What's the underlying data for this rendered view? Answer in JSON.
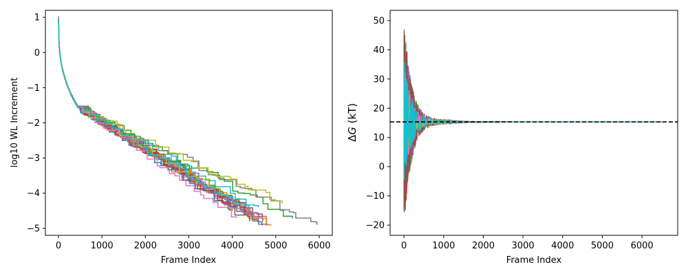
{
  "chart_data": [
    {
      "type": "line",
      "xlabel": "Frame Index",
      "ylabel": "log10 WL Increment",
      "xlim": [
        -300,
        6300
      ],
      "ylim": [
        -5.2,
        1.2
      ],
      "xticks": [
        0,
        1000,
        2000,
        3000,
        4000,
        5000,
        6000
      ],
      "yticks": [
        1,
        0,
        -1,
        -2,
        -3,
        -4,
        -5
      ],
      "grid": false,
      "legend": "none",
      "description_of_series": "20 staircase decay curves starting at 1 and decaying to -4.9",
      "series": [
        {
          "color": "#1f77b4",
          "end_x": 4700,
          "final_y": -4.9
        },
        {
          "color": "#ff7f0e",
          "end_x": 4600,
          "final_y": -4.9
        },
        {
          "color": "#2ca02c",
          "end_x": 5400,
          "final_y": -4.7
        },
        {
          "color": "#d62728",
          "end_x": 4500,
          "final_y": -4.6
        },
        {
          "color": "#9467bd",
          "end_x": 4900,
          "final_y": -4.9
        },
        {
          "color": "#8c564b",
          "end_x": 4700,
          "final_y": -4.8
        },
        {
          "color": "#e377c2",
          "end_x": 4500,
          "final_y": -4.7
        },
        {
          "color": "#7f7f7f",
          "end_x": 5950,
          "final_y": -4.9
        },
        {
          "color": "#bcbd22",
          "end_x": 5150,
          "final_y": -4.3
        },
        {
          "color": "#17becf",
          "end_x": 4600,
          "final_y": -4.4
        },
        {
          "color": "#1f77b4",
          "end_x": 4000,
          "final_y": -4.5
        },
        {
          "color": "#ff7f0e",
          "end_x": 4900,
          "final_y": -4.9
        },
        {
          "color": "#2ca02c",
          "end_x": 4200,
          "final_y": -4.3
        },
        {
          "color": "#d62728",
          "end_x": 4300,
          "final_y": -4.6
        },
        {
          "color": "#9467bd",
          "end_x": 4800,
          "final_y": -4.9
        },
        {
          "color": "#8c564b",
          "end_x": 4400,
          "final_y": -4.8
        },
        {
          "color": "#e377c2",
          "end_x": 4100,
          "final_y": -4.7
        },
        {
          "color": "#7f7f7f",
          "end_x": 4600,
          "final_y": -4.8
        },
        {
          "color": "#bcbd22",
          "end_x": 3900,
          "final_y": -4.1
        },
        {
          "color": "#17becf",
          "end_x": 4400,
          "final_y": -4.5
        }
      ]
    },
    {
      "type": "line",
      "xlabel": "Frame Index",
      "ylabel": "ΔG (kT)",
      "ylabel_italic_part": "G",
      "xlim": [
        -350,
        6900
      ],
      "ylim": [
        -23.5,
        53.5
      ],
      "xticks": [
        0,
        1000,
        2000,
        3000,
        4000,
        5000,
        6000
      ],
      "yticks": [
        50,
        40,
        30,
        20,
        10,
        0,
        -10,
        -20
      ],
      "grid": false,
      "legend": "none",
      "reference_line": {
        "y": 15.3,
        "style": "dashed",
        "color": "#000000"
      },
      "converged_value": 15.3,
      "initial_spread_range": [
        -20,
        50
      ],
      "series_colors": [
        "#1f77b4",
        "#ff7f0e",
        "#2ca02c",
        "#d62728",
        "#9467bd",
        "#8c564b",
        "#e377c2",
        "#7f7f7f",
        "#bcbd22",
        "#17becf"
      ]
    }
  ]
}
